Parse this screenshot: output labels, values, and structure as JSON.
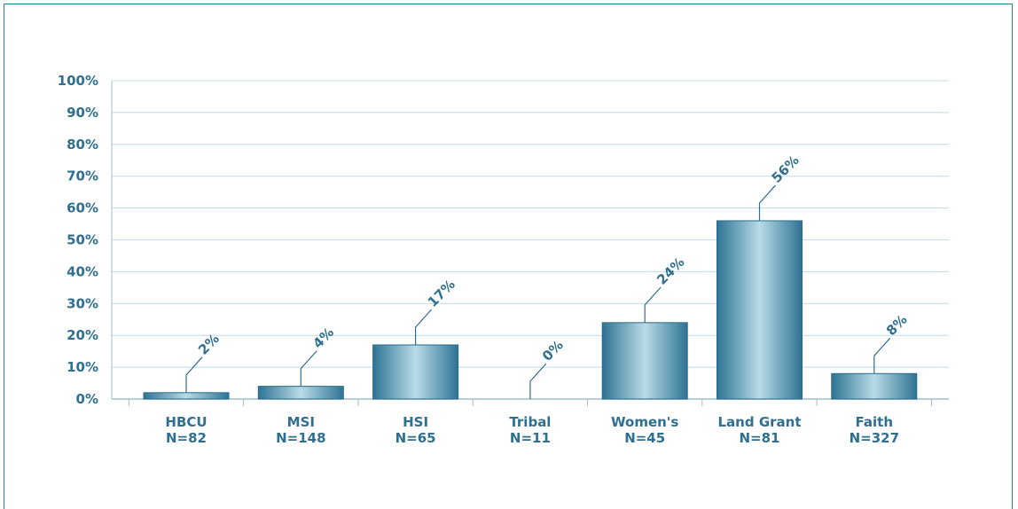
{
  "chart_data": {
    "type": "bar",
    "categories": [
      "HBCU",
      "MSI",
      "HSI",
      "Tribal",
      "Women's",
      "Land Grant",
      "Faith"
    ],
    "counts": [
      "N=82",
      "N=148",
      "N=65",
      "N=11",
      "N=45",
      "N=81",
      "N=327"
    ],
    "values": [
      2,
      4,
      17,
      0,
      24,
      56,
      8
    ],
    "data_labels": [
      "2%",
      "4%",
      "17%",
      "0%",
      "24%",
      "56%",
      "8%"
    ],
    "yticks": [
      "0%",
      "10%",
      "20%",
      "30%",
      "40%",
      "50%",
      "60%",
      "70%",
      "80%",
      "90%",
      "100%"
    ],
    "ylim": [
      0,
      100
    ],
    "grid": true,
    "colors": {
      "bar_dark": "#2e7394",
      "bar_light": "#b9dbe7",
      "text": "#2f6f8f",
      "grid": "#bfdce8",
      "axis": "#9fbfcf"
    }
  }
}
